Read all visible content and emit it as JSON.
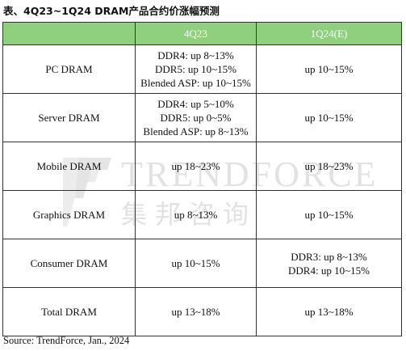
{
  "title": "表、4Q23~1Q24 DRAM产品合约价涨幅预测",
  "header": {
    "col1": "",
    "col2": "4Q23",
    "col3": "1Q24(E)"
  },
  "rows": [
    {
      "name": "PC DRAM",
      "q4": [
        "DDR4: up 8~13%",
        "DDR5: up 10~15%",
        "Blended ASP: up 10~15%"
      ],
      "q1": [
        "up 10~15%"
      ]
    },
    {
      "name": "Server DRAM",
      "q4": [
        "DDR4: up 5~10%",
        "DDR5: up 0~5%",
        "Blended ASP: up 8~13%"
      ],
      "q1": [
        "up 10~15%"
      ]
    },
    {
      "name": "Mobile DRAM",
      "q4": [
        "up 18~23%"
      ],
      "q1": [
        "up 18~23%"
      ]
    },
    {
      "name": "Graphics DRAM",
      "q4": [
        "up 8~13%"
      ],
      "q1": [
        "up 10~15%"
      ]
    },
    {
      "name": "Consumer DRAM",
      "q4": [
        "up 10~15%"
      ],
      "q1": [
        "DDR3: up 8~13%",
        "DDR4: up 10~15%"
      ]
    },
    {
      "name": "Total DRAM",
      "q4": [
        "up 13~18%"
      ],
      "q1": [
        "up 13~18%"
      ]
    }
  ],
  "watermark": {
    "latin": "TRENDFORCE",
    "cn": "集邦咨询"
  },
  "source": "Source: TrendForce, Jan., 2024",
  "colors": {
    "header_bg": "#8fd07f",
    "header_text": "#ffffff",
    "border": "#333333"
  }
}
